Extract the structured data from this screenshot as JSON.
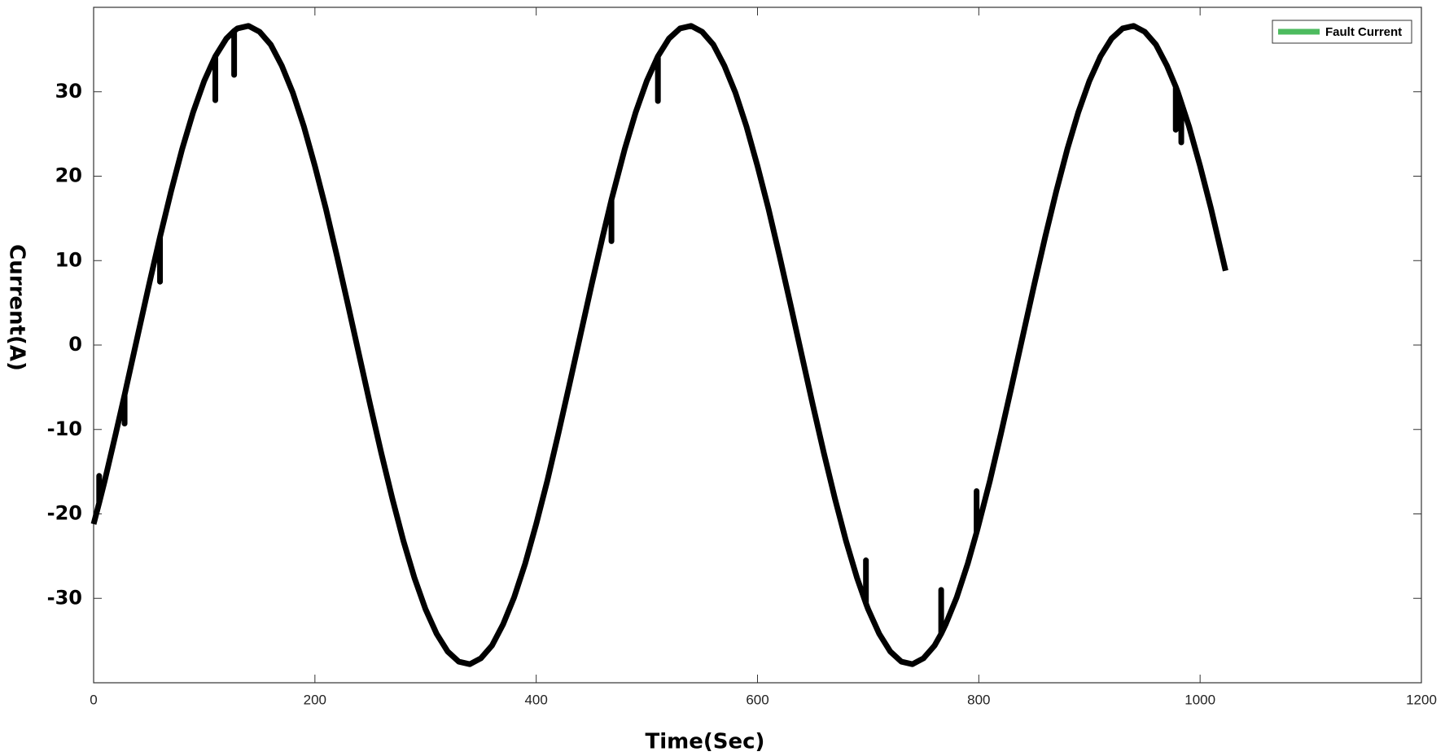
{
  "chart_data": {
    "type": "line",
    "xlabel": "Time(Sec)",
    "ylabel": "Current(A)",
    "xlim": [
      0,
      1200
    ],
    "xticks": [
      0,
      200,
      400,
      600,
      800,
      1000,
      1200
    ],
    "ylim": [
      -40,
      40
    ],
    "yticks": [
      -30,
      -20,
      -10,
      0,
      10,
      20,
      30
    ],
    "grid": false,
    "legend": "upper right",
    "series": [
      {
        "name": "Fault Current",
        "color": "#000000",
        "legend_color": "#4dbb5f",
        "x": [
          0,
          5,
          5,
          5,
          10,
          20,
          28,
          28,
          28,
          30,
          40,
          50,
          60,
          60,
          60,
          70,
          80,
          90,
          100,
          110,
          110,
          110,
          120,
          127,
          127,
          127,
          130,
          140,
          150,
          160,
          170,
          180,
          190,
          200,
          210,
          220,
          230,
          240,
          250,
          260,
          270,
          280,
          290,
          300,
          310,
          320,
          330,
          340,
          350,
          360,
          370,
          380,
          390,
          400,
          410,
          420,
          430,
          440,
          450,
          460,
          468,
          468,
          468,
          470,
          480,
          490,
          500,
          510,
          510,
          510,
          520,
          530,
          540,
          550,
          560,
          570,
          580,
          590,
          600,
          610,
          620,
          630,
          640,
          650,
          660,
          670,
          680,
          690,
          698,
          698,
          698,
          700,
          710,
          720,
          730,
          740,
          750,
          760,
          766,
          766,
          766,
          770,
          780,
          790,
          798,
          798,
          798,
          800,
          810,
          820,
          830,
          840,
          850,
          860,
          870,
          880,
          890,
          900,
          910,
          920,
          930,
          940,
          950,
          960,
          970,
          978,
          978,
          978,
          980,
          983,
          983,
          983,
          990,
          1000,
          1010,
          1020,
          1023
        ],
        "values": [
          -21.2,
          -18.7,
          -15.5,
          -18.7,
          -16.1,
          -10.5,
          -5.9,
          -9.3,
          -5.9,
          -4.7,
          1.2,
          7.1,
          12.8,
          7.5,
          12.8,
          18.2,
          23.2,
          27.6,
          31.3,
          34.2,
          29,
          34.2,
          36.3,
          37.2,
          32,
          37.2,
          37.5,
          37.8,
          37.1,
          35.6,
          33.1,
          29.9,
          25.9,
          21.2,
          16.1,
          10.5,
          4.7,
          -1.2,
          -7.1,
          -12.8,
          -18.2,
          -23.2,
          -27.6,
          -31.3,
          -34.2,
          -36.3,
          -37.5,
          -37.8,
          -37.1,
          -35.6,
          -33.1,
          -29.9,
          -25.9,
          -21.2,
          -16.1,
          -10.5,
          -4.7,
          1.2,
          7.1,
          12.8,
          17.2,
          12.3,
          17.2,
          18.2,
          23.2,
          27.6,
          31.3,
          34.2,
          28.9,
          34.2,
          36.3,
          37.5,
          37.8,
          37.1,
          35.6,
          33.1,
          29.9,
          25.9,
          21.2,
          16.1,
          10.5,
          4.7,
          -1.2,
          -7.1,
          -12.8,
          -18.2,
          -23.2,
          -27.6,
          -30.6,
          -25.5,
          -30.6,
          -31.3,
          -34.2,
          -36.3,
          -37.5,
          -37.8,
          -37.1,
          -35.6,
          -34.2,
          -29,
          -34.2,
          -33.1,
          -29.9,
          -25.9,
          -22.2,
          -17.3,
          -22.2,
          -21.2,
          -16.1,
          -10.5,
          -4.7,
          1.2,
          7.1,
          12.8,
          18.2,
          23.2,
          27.6,
          31.3,
          34.2,
          36.3,
          37.5,
          37.8,
          37.1,
          35.6,
          33.1,
          30.6,
          25.5,
          30.6,
          29.9,
          28.7,
          24,
          28.7,
          25.9,
          21.2,
          16.1,
          10.5,
          8.8
        ]
      }
    ]
  }
}
